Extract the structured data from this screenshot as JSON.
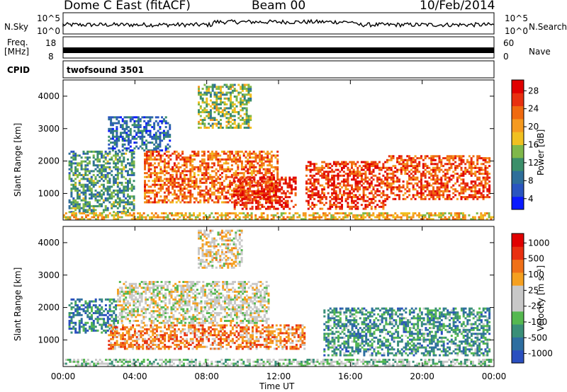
{
  "header": {
    "station": "Dome C East (fitACF)",
    "beam": "Beam 00",
    "date": "10/Feb/2014"
  },
  "panels": {
    "nsky": {
      "label": "N.Sky",
      "ticks": [
        "10^5",
        "10^0"
      ]
    },
    "nsearch": {
      "label": "N.Search",
      "ticks": [
        "10^5",
        "10^0"
      ]
    },
    "freq": {
      "label1": "Freq.",
      "label2": "[MHz]",
      "ticks": [
        "18",
        "8"
      ]
    },
    "nave": {
      "label": "Nave",
      "ticks": [
        "60",
        "0"
      ]
    },
    "cpid": {
      "label": "CPID",
      "value": "twofsound 3501"
    }
  },
  "chart_data": [
    {
      "type": "heatmap",
      "title": "Power",
      "ylabel": "Slant Range [km]",
      "xlabel": "Time UT",
      "ylim": [
        180,
        4500
      ],
      "xlim": [
        "00:00",
        "24:00"
      ],
      "yticks": [
        "1000",
        "2000",
        "3000",
        "4000"
      ],
      "xticks": [
        "00:00",
        "04:00",
        "08:00",
        "12:00",
        "16:00",
        "20:00",
        "00:00"
      ],
      "colorbar": {
        "label": "Power [dB]",
        "ticks": [
          "28",
          "24",
          "20",
          "16",
          "12",
          "8",
          "4"
        ],
        "colors": [
          "#0a1aff",
          "#2a55c0",
          "#2e6e9a",
          "#3b8f6a",
          "#7fb84a",
          "#f0c020",
          "#f59a20",
          "#f06a10",
          "#e83010",
          "#e00000"
        ]
      },
      "regions": [
        {
          "t0": 0.3,
          "t1": 4.0,
          "r0": 400,
          "r1": 2300,
          "level": 0.35
        },
        {
          "t0": 2.5,
          "t1": 6.0,
          "r0": 2300,
          "r1": 3400,
          "level": 0.2
        },
        {
          "t0": 4.5,
          "t1": 12.0,
          "r0": 700,
          "r1": 2300,
          "level": 0.75
        },
        {
          "t0": 7.5,
          "t1": 10.5,
          "r0": 3000,
          "r1": 4400,
          "level": 0.45
        },
        {
          "t0": 9.5,
          "t1": 13.0,
          "r0": 500,
          "r1": 1500,
          "level": 0.9
        },
        {
          "t0": 13.5,
          "t1": 18.0,
          "r0": 500,
          "r1": 2000,
          "level": 0.85
        },
        {
          "t0": 18.0,
          "t1": 23.8,
          "r0": 800,
          "r1": 2200,
          "level": 0.8
        },
        {
          "t0": 0.0,
          "t1": 24.0,
          "r0": 180,
          "r1": 400,
          "level": 0.6
        }
      ]
    },
    {
      "type": "heatmap",
      "title": "Velocity",
      "ylabel": "Slant Range [km]",
      "xlabel": "Time UT",
      "ylim": [
        180,
        4500
      ],
      "xlim": [
        "00:00",
        "24:00"
      ],
      "yticks": [
        "1000",
        "2000",
        "3000",
        "4000"
      ],
      "xticks": [
        "00:00",
        "04:00",
        "08:00",
        "12:00",
        "16:00",
        "20:00",
        "00:00"
      ],
      "colorbar": {
        "label": "Velocity [m s⁻¹]",
        "ticks": [
          "1000",
          "500",
          "100",
          "25",
          "-25",
          "-100",
          "-500",
          "-1000"
        ],
        "colors": [
          "#2a4fbf",
          "#2e6ea0",
          "#3a8f78",
          "#55b850",
          "#c8c8c8",
          "#c8c8c8",
          "#f5a020",
          "#f07018",
          "#e83010",
          "#e00000"
        ]
      },
      "regions": [
        {
          "t0": 0.3,
          "t1": 3.0,
          "r0": 1200,
          "r1": 2300,
          "level": 0.2
        },
        {
          "t0": 3.0,
          "t1": 11.5,
          "r0": 1500,
          "r1": 2800,
          "level": 0.5
        },
        {
          "t0": 2.5,
          "t1": 13.5,
          "r0": 700,
          "r1": 1500,
          "level": 0.72
        },
        {
          "t0": 7.5,
          "t1": 10.0,
          "r0": 3200,
          "r1": 4400,
          "level": 0.55
        },
        {
          "t0": 14.5,
          "t1": 23.8,
          "r0": 500,
          "r1": 2000,
          "level": 0.25
        },
        {
          "t0": 0.0,
          "t1": 24.0,
          "r0": 180,
          "r1": 400,
          "level": 0.4
        }
      ]
    }
  ]
}
